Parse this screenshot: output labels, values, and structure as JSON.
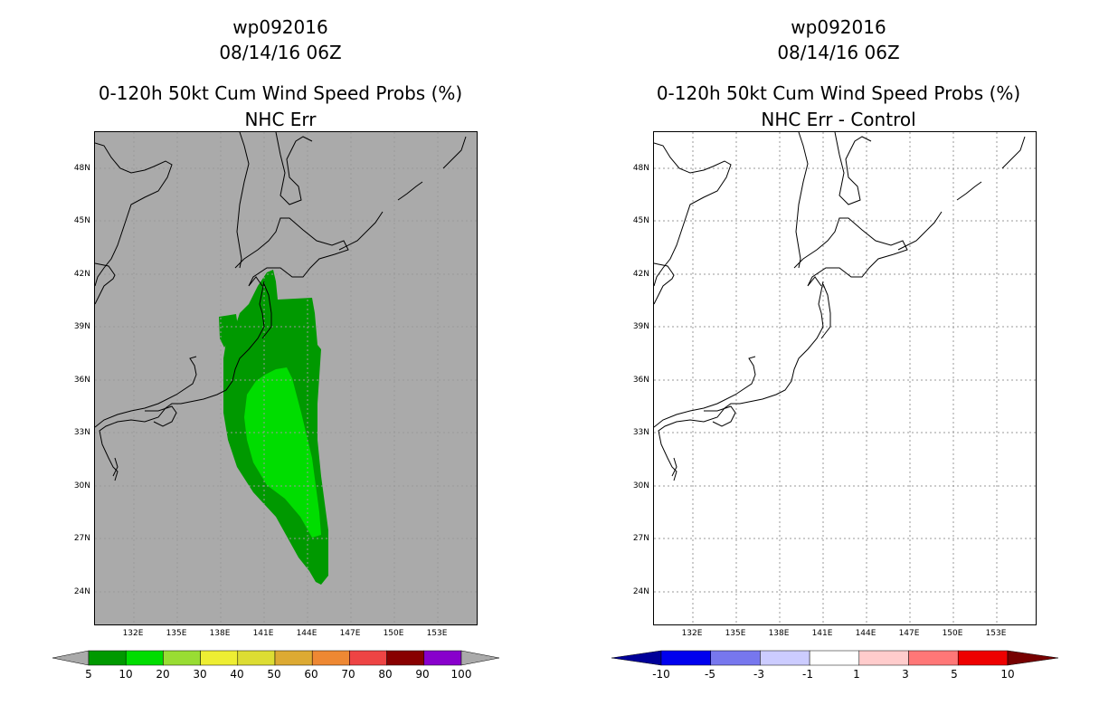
{
  "left_panel": {
    "title_line1": "wp092016",
    "title_line2": "08/14/16 06Z",
    "title_line3": "0-120h 50kt Cum Wind Speed Probs (%)",
    "title_line4": "NHC Err",
    "colorbar": {
      "labels": [
        "5",
        "10",
        "20",
        "30",
        "40",
        "50",
        "60",
        "70",
        "80",
        "90",
        "100"
      ],
      "colors": [
        "#009900",
        "#00dd00",
        "#99dd33",
        "#eeee33",
        "#dddd33",
        "#ddaa33",
        "#ee8833",
        "#ee4444",
        "#880000",
        "#8800cc"
      ]
    }
  },
  "right_panel": {
    "title_line1": "wp092016",
    "title_line2": "08/14/16 06Z",
    "title_line3": "0-120h 50kt Cum Wind Speed Probs (%)",
    "title_line4": "NHC Err - Control",
    "colorbar": {
      "labels": [
        "-10",
        "-5",
        "-3",
        "-1",
        "1",
        "3",
        "5",
        "10"
      ],
      "colors": [
        "#000099",
        "#0000ee",
        "#7777ee",
        "#ccccff",
        "#ffffff",
        "#ffcccc",
        "#ff7777",
        "#ee0000",
        "#770000"
      ]
    }
  },
  "axes": {
    "lat_labels": [
      "48N",
      "45N",
      "42N",
      "39N",
      "36N",
      "33N",
      "30N",
      "27N",
      "24N"
    ],
    "lon_labels": [
      "132E",
      "135E",
      "138E",
      "141E",
      "144E",
      "147E",
      "150E",
      "153E"
    ]
  },
  "colors": {
    "ocean_left": "#aaaaaa",
    "ocean_right": "#ffffff",
    "prob_5": "#009900",
    "prob_10": "#00dd00",
    "grid": "#bbbbbb"
  }
}
